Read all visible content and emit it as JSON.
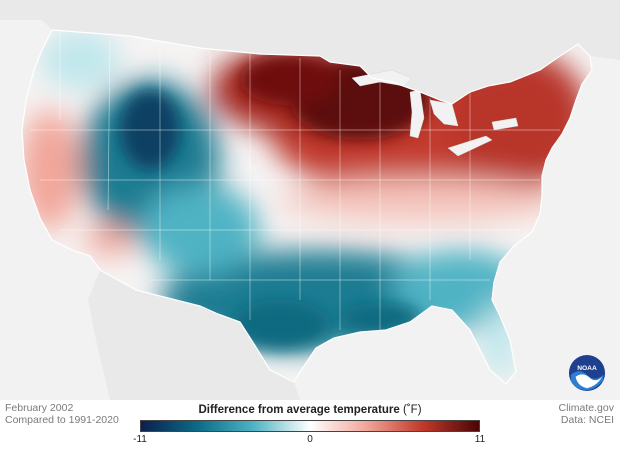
{
  "map": {
    "footer_left": {
      "line1": "February 2002",
      "line2": "Compared to 1991-2020"
    },
    "footer_right": {
      "line1": "Climate.gov",
      "line2": "Data: NCEI"
    },
    "legend": {
      "title": "Difference from average temperature",
      "unit": "(˚F)",
      "min_label": "-11",
      "mid_label": "0",
      "max_label": "11",
      "colors": [
        "#0b1f4d",
        "#0b6b86",
        "#4fb3c4",
        "#ffffff",
        "#f2a69a",
        "#c0392b",
        "#4a0505"
      ]
    },
    "logo_text": "NOAA",
    "colors": {
      "land_bg": "#ebebeb",
      "ocean_bg": "#f2f2f2",
      "cold_strong": "#0c3f63",
      "cold": "#1b7c92",
      "cool": "#8fd3dc",
      "warm": "#f2a69a",
      "hot": "#c0392b",
      "very_hot": "#5c0808"
    }
  }
}
